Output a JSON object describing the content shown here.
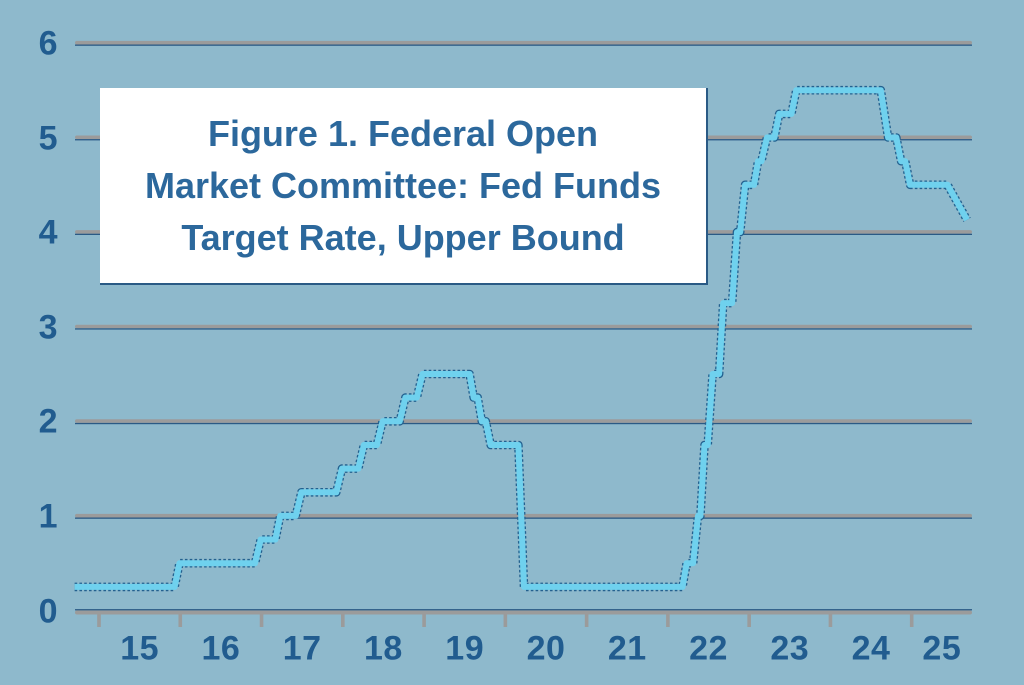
{
  "chart_data": {
    "type": "line",
    "title": "Figure 1. Federal Open Market Committee: Fed Funds Target Rate, Upper Bound",
    "title_lines": [
      "Figure 1. Federal Open",
      "Market Committee: Fed Funds",
      "Target Rate, Upper Bound"
    ],
    "xlabel": "",
    "ylabel": "",
    "xlim": [
      2014.7,
      2025.73
    ],
    "ylim": [
      0,
      6
    ],
    "grid": "horizontal",
    "legend": "none",
    "y_ticks": [
      0,
      1,
      2,
      3,
      4,
      5,
      6
    ],
    "x_tick_years": [
      2015,
      2016,
      2017,
      2018,
      2019,
      2020,
      2021,
      2022,
      2023,
      2024,
      2025
    ],
    "x_tick_labels": [
      "15",
      "16",
      "17",
      "18",
      "19",
      "20",
      "21",
      "22",
      "23",
      "24",
      "25"
    ],
    "series": [
      {
        "name": "Fed Funds Target Rate, Upper Bound (%)",
        "points": [
          [
            2014.7,
            0.25
          ],
          [
            2015.93,
            0.25
          ],
          [
            2015.99,
            0.5
          ],
          [
            2016.92,
            0.5
          ],
          [
            2016.99,
            0.75
          ],
          [
            2017.17,
            0.75
          ],
          [
            2017.23,
            1.0
          ],
          [
            2017.42,
            1.0
          ],
          [
            2017.49,
            1.25
          ],
          [
            2017.92,
            1.25
          ],
          [
            2017.99,
            1.5
          ],
          [
            2018.19,
            1.5
          ],
          [
            2018.26,
            1.75
          ],
          [
            2018.42,
            1.75
          ],
          [
            2018.49,
            2.0
          ],
          [
            2018.7,
            2.0
          ],
          [
            2018.77,
            2.25
          ],
          [
            2018.91,
            2.25
          ],
          [
            2018.98,
            2.5
          ],
          [
            2019.56,
            2.5
          ],
          [
            2019.61,
            2.25
          ],
          [
            2019.66,
            2.25
          ],
          [
            2019.71,
            2.0
          ],
          [
            2019.76,
            2.0
          ],
          [
            2019.82,
            1.75
          ],
          [
            2020.16,
            1.75
          ],
          [
            2020.23,
            0.25
          ],
          [
            2022.18,
            0.25
          ],
          [
            2022.23,
            0.5
          ],
          [
            2022.31,
            0.5
          ],
          [
            2022.37,
            1.0
          ],
          [
            2022.4,
            1.0
          ],
          [
            2022.45,
            1.75
          ],
          [
            2022.49,
            1.75
          ],
          [
            2022.55,
            2.5
          ],
          [
            2022.63,
            2.5
          ],
          [
            2022.68,
            3.25
          ],
          [
            2022.79,
            3.25
          ],
          [
            2022.85,
            4.0
          ],
          [
            2022.89,
            4.0
          ],
          [
            2022.95,
            4.5
          ],
          [
            2023.06,
            4.5
          ],
          [
            2023.11,
            4.75
          ],
          [
            2023.15,
            4.75
          ],
          [
            2023.22,
            5.0
          ],
          [
            2023.31,
            5.0
          ],
          [
            2023.37,
            5.25
          ],
          [
            2023.52,
            5.25
          ],
          [
            2023.58,
            5.5
          ],
          [
            2024.62,
            5.5
          ],
          [
            2024.71,
            5.0
          ],
          [
            2024.81,
            5.0
          ],
          [
            2024.87,
            4.75
          ],
          [
            2024.92,
            4.75
          ],
          [
            2024.98,
            4.5
          ],
          [
            2025.44,
            4.5
          ],
          [
            2025.68,
            4.13
          ]
        ]
      }
    ],
    "colors": {
      "background": "#8eb9cc",
      "line_fill": "#6fd1ee",
      "line_outline": "#23618f",
      "gridline": "#9b9b9b",
      "gridline_edge": "#2a5a85",
      "axis": "#9b9b9b",
      "tick": "#9b9b9b",
      "axis_text": "#215c8f",
      "title_text": "#2c689c",
      "title_box_bg": "#ffffff",
      "title_box_border": "#2a5a85"
    }
  }
}
